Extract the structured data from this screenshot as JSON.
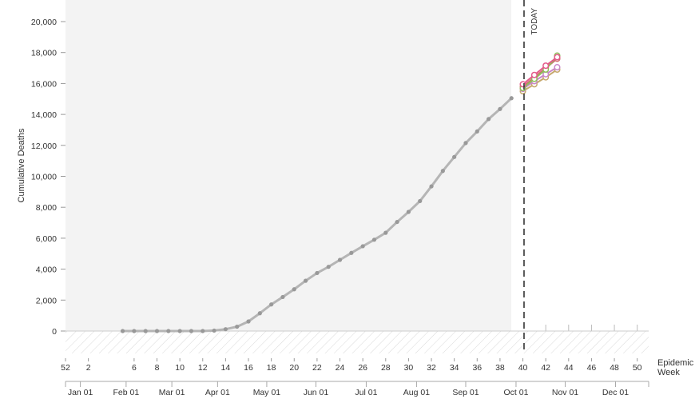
{
  "chart_data": {
    "type": "line",
    "ylabel": "Cumulative Deaths",
    "xlabel": "Epidemic Week",
    "xlabel_lines": [
      "Epidemic",
      "Week"
    ],
    "ylim": [
      -3000,
      21000
    ],
    "y_ticks": [
      0,
      2000,
      4000,
      6000,
      8000,
      10000,
      12000,
      14000,
      16000,
      18000,
      20000
    ],
    "y_tick_labels": [
      "0",
      "2,000",
      "4,000",
      "6,000",
      "8,000",
      "10,000",
      "12,000",
      "14,000",
      "16,000",
      "18,000",
      "20,000"
    ],
    "xlim": [
      0,
      51
    ],
    "week_ticks": [
      0,
      2,
      6,
      8,
      10,
      12,
      14,
      16,
      18,
      20,
      22,
      24,
      26,
      28,
      30,
      32,
      34,
      36,
      38,
      40,
      42,
      44,
      46,
      48,
      50
    ],
    "week_tick_labels": [
      "52",
      "2",
      "6",
      "8",
      "10",
      "12",
      "14",
      "16",
      "18",
      "20",
      "22",
      "24",
      "26",
      "28",
      "30",
      "32",
      "34",
      "36",
      "38",
      "40",
      "42",
      "44",
      "46",
      "48",
      "50"
    ],
    "month_ticks": [
      1.3,
      5.3,
      9.3,
      13.3,
      17.6,
      21.9,
      26.3,
      30.7,
      35.0,
      39.4,
      43.7,
      48.1
    ],
    "month_labels": [
      "Jan 01",
      "Feb 01",
      "Mar 01",
      "Apr 01",
      "May 01",
      "Jun 01",
      "Jul 01",
      "Aug 01",
      "Sep 01",
      "Oct 01",
      "Nov 01",
      "Dec 01"
    ],
    "today_week": 40.1,
    "today_label": "TODAY",
    "observed_until_week": 39,
    "observed": {
      "color": "#b5b5b5",
      "x": [
        5,
        6,
        7,
        8,
        9,
        10,
        11,
        12,
        13,
        14,
        15,
        16,
        17,
        18,
        19,
        20,
        21,
        22,
        23,
        24,
        25,
        26,
        27,
        28,
        29,
        30,
        31,
        32,
        33,
        34,
        35,
        36,
        37,
        38,
        39
      ],
      "y": [
        0,
        0,
        0,
        0,
        0,
        0,
        0,
        0,
        30,
        120,
        280,
        620,
        1150,
        1720,
        2200,
        2700,
        3250,
        3750,
        4150,
        4600,
        5050,
        5480,
        5900,
        6350,
        7050,
        7700,
        8400,
        9350,
        10350,
        11250,
        12150,
        12900,
        13700,
        14350,
        15050
      ]
    },
    "series": [
      {
        "color": "#c7a96e",
        "x": [
          40,
          41,
          42,
          43
        ],
        "y": [
          15500,
          15950,
          16400,
          16900
        ]
      },
      {
        "color": "#c987c9",
        "x": [
          40,
          41,
          42,
          43
        ],
        "y": [
          15650,
          16150,
          16600,
          17050
        ]
      },
      {
        "color": "#d16e6e",
        "x": [
          40,
          41,
          42,
          43
        ],
        "y": [
          15800,
          16400,
          17000,
          17600
        ]
      },
      {
        "color": "#8fbf5a",
        "x": [
          40,
          41,
          42,
          43
        ],
        "y": [
          15700,
          16300,
          16900,
          17800
        ]
      },
      {
        "color": "#e35a8a",
        "x": [
          40,
          41,
          42,
          43
        ],
        "y": [
          15950,
          16550,
          17150,
          17700
        ]
      }
    ]
  }
}
